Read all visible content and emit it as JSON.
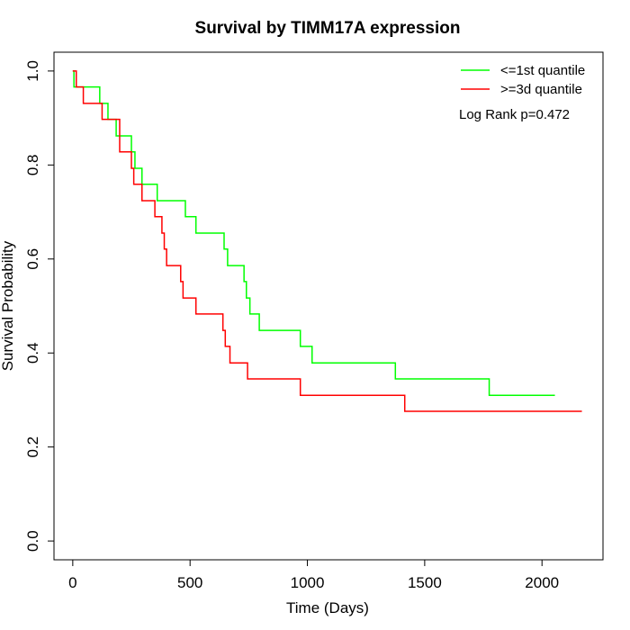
{
  "chart_data": {
    "type": "line",
    "step": true,
    "title": "Survival by TIMM17A expression",
    "xlabel": "Time (Days)",
    "ylabel": "Survival Probability",
    "xlim": [
      -80,
      2260
    ],
    "ylim": [
      -0.04,
      1.04
    ],
    "xticks": [
      0,
      500,
      1000,
      1500,
      2000
    ],
    "yticks": [
      0.0,
      0.2,
      0.4,
      0.6,
      0.8,
      1.0
    ],
    "xtick_labels": [
      "0",
      "500",
      "1000",
      "1500",
      "2000"
    ],
    "ytick_labels": [
      "0.0",
      "0.2",
      "0.4",
      "0.6",
      "0.8",
      "1.0"
    ],
    "grid": false,
    "legend_position": "top-right",
    "annotation": "Log Rank p=0.472",
    "series": [
      {
        "name": "<=1st quantile",
        "color": "#00ff00",
        "x": [
          0,
          5,
          115,
          150,
          185,
          250,
          265,
          295,
          360,
          480,
          525,
          645,
          660,
          730,
          740,
          755,
          795,
          970,
          1020,
          1375,
          1775,
          2055
        ],
        "y": [
          1.0,
          0.966,
          0.931,
          0.897,
          0.862,
          0.828,
          0.793,
          0.759,
          0.724,
          0.69,
          0.655,
          0.621,
          0.586,
          0.552,
          0.517,
          0.483,
          0.448,
          0.414,
          0.379,
          0.345,
          0.31,
          0.31
        ]
      },
      {
        "name": ">=3d quantile",
        "color": "#ff0000",
        "x": [
          0,
          15,
          45,
          125,
          200,
          250,
          260,
          295,
          350,
          380,
          390,
          400,
          460,
          470,
          525,
          640,
          650,
          670,
          745,
          970,
          1415,
          2170
        ],
        "y": [
          1.0,
          0.966,
          0.931,
          0.897,
          0.828,
          0.793,
          0.759,
          0.724,
          0.69,
          0.655,
          0.621,
          0.586,
          0.552,
          0.517,
          0.483,
          0.448,
          0.414,
          0.379,
          0.345,
          0.31,
          0.276,
          0.276
        ]
      }
    ]
  }
}
